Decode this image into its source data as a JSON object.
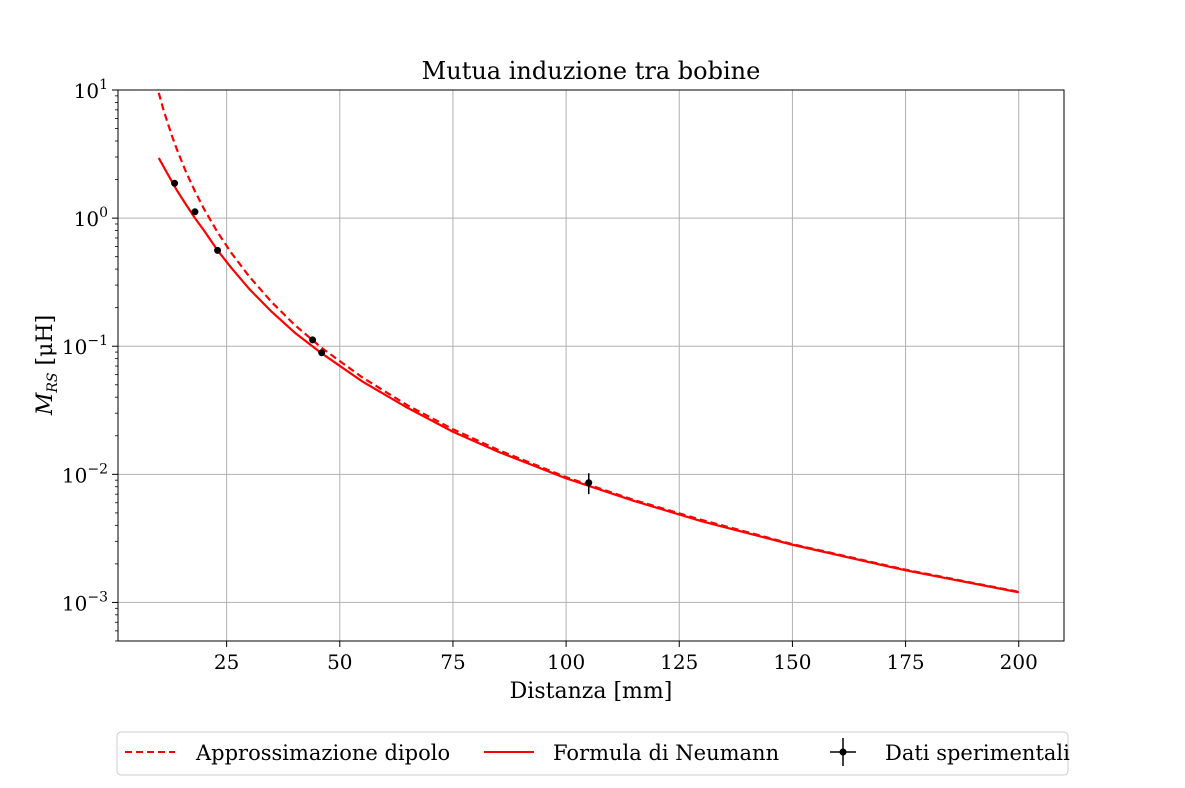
{
  "chart_data": {
    "type": "line",
    "title": "Mutua induzione tra bobine",
    "xlabel": "Distanza [mm]",
    "ylabel_main": "M",
    "ylabel_sub": "RS",
    "ylabel_unit": " [μH]",
    "x_scale": "linear",
    "y_scale": "log",
    "xlim": [
      1,
      210
    ],
    "ylim": [
      0.0005,
      10
    ],
    "x_ticks": [
      25,
      50,
      75,
      100,
      125,
      150,
      175,
      200
    ],
    "x_tick_labels": [
      "25",
      "50",
      "75",
      "100",
      "125",
      "150",
      "175",
      "200"
    ],
    "y_ticks": [
      {
        "value": 10,
        "base": "10",
        "exp": "1"
      },
      {
        "value": 1,
        "base": "10",
        "exp": "0"
      },
      {
        "value": 0.1,
        "base": "10",
        "exp": "−1"
      },
      {
        "value": 0.01,
        "base": "10",
        "exp": "−2"
      },
      {
        "value": 0.001,
        "base": "10",
        "exp": "−3"
      }
    ],
    "grid": true,
    "legend_position": "bottom-outside",
    "series": [
      {
        "name": "Approssimazione dipolo",
        "style": "dashed",
        "color": "#ff0000",
        "x": [
          10,
          11,
          12,
          13,
          14,
          16,
          18,
          20,
          23,
          26,
          30,
          35,
          40,
          46,
          55,
          65,
          75,
          85,
          100,
          115,
          130,
          150,
          175,
          200
        ],
        "y": [
          9.5,
          7.1,
          5.5,
          4.3,
          3.45,
          2.3,
          1.62,
          1.18,
          0.775,
          0.537,
          0.35,
          0.22,
          0.147,
          0.097,
          0.057,
          0.0345,
          0.0225,
          0.0155,
          0.0095,
          0.0063,
          0.0044,
          0.00285,
          0.0018,
          0.00121
        ]
      },
      {
        "name": "Formula di Neumann",
        "style": "solid",
        "color": "#ff0000",
        "x": [
          10,
          12,
          14,
          16,
          18,
          20,
          23,
          26,
          30,
          35,
          40,
          46,
          55,
          65,
          75,
          85,
          100,
          115,
          130,
          150,
          175,
          200
        ],
        "y": [
          2.95,
          2.2,
          1.65,
          1.28,
          1.0,
          0.8,
          0.56,
          0.41,
          0.28,
          0.185,
          0.128,
          0.088,
          0.053,
          0.033,
          0.0215,
          0.015,
          0.0093,
          0.0062,
          0.0043,
          0.00282,
          0.00178,
          0.0012
        ]
      },
      {
        "name": "Dati sperimentali",
        "style": "points",
        "color": "#000000",
        "x": [
          13.5,
          18.0,
          23.0,
          44.0,
          46.0,
          105.0
        ],
        "y": [
          1.87,
          1.12,
          0.56,
          0.112,
          0.089,
          0.0086
        ],
        "y_err": [
          0,
          0,
          0,
          0,
          0,
          0.0016
        ]
      }
    ]
  }
}
